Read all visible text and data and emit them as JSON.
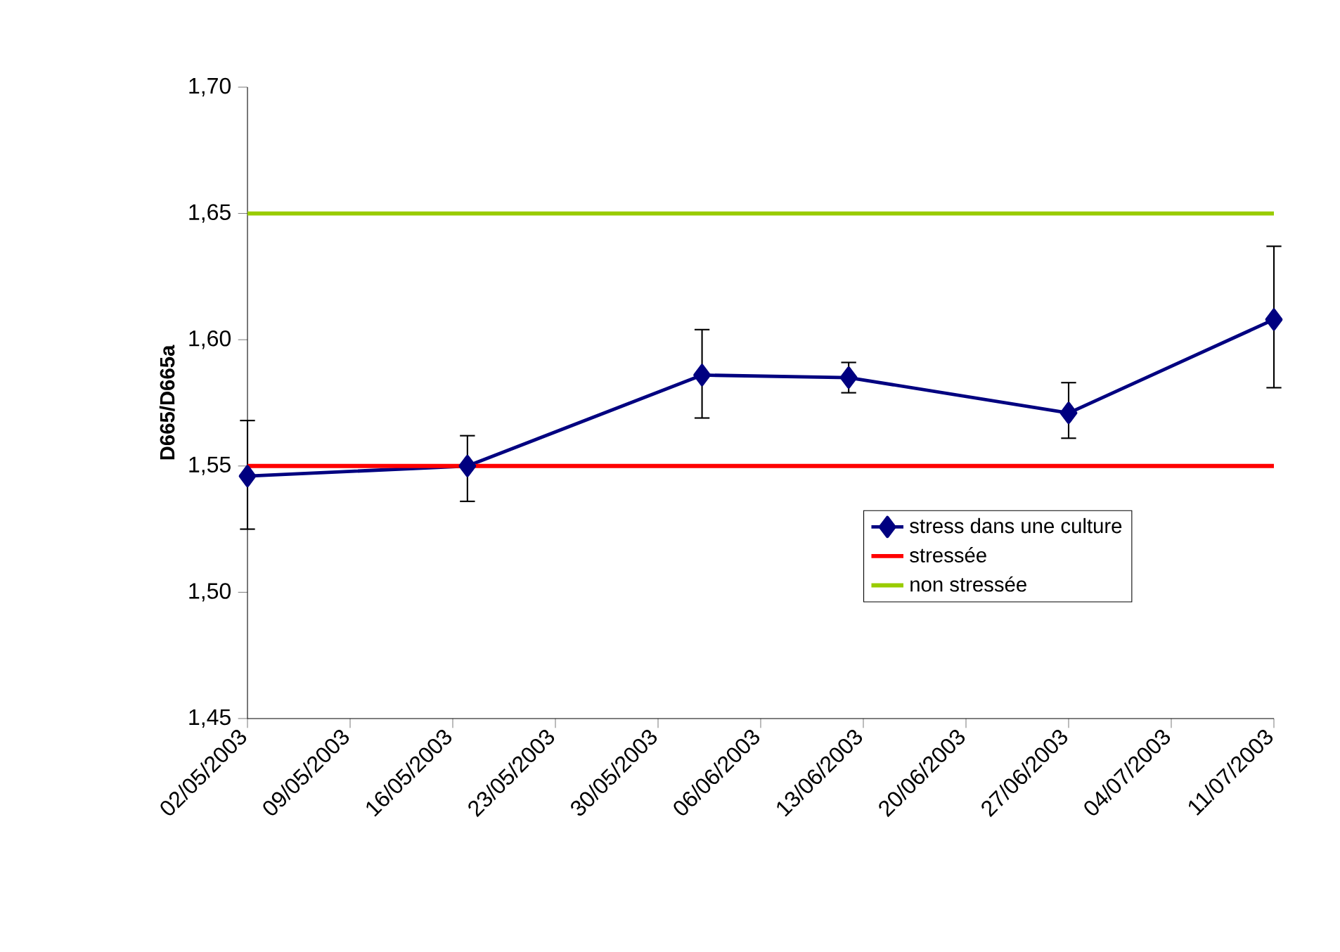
{
  "chart_data": {
    "type": "line",
    "ylabel": "D665/D665a",
    "x": [
      "2003-05-02",
      "2003-05-17",
      "2003-06-02",
      "2003-06-12",
      "2003-06-27",
      "2003-07-11"
    ],
    "series": [
      {
        "name": "stress dans une culture",
        "color": "#000080",
        "marker": "diamond",
        "values": [
          1.546,
          1.55,
          1.586,
          1.585,
          1.571,
          1.608
        ],
        "errors": [
          [
            1.525,
            1.568
          ],
          [
            1.536,
            1.562
          ],
          [
            1.569,
            1.604
          ],
          [
            1.579,
            1.591
          ],
          [
            1.561,
            1.583
          ],
          [
            1.581,
            1.637
          ]
        ]
      },
      {
        "name": "stressée",
        "color": "#ff0000",
        "marker": "none",
        "x": [
          "2003-05-02",
          "2003-07-11"
        ],
        "values": [
          1.55,
          1.55
        ]
      },
      {
        "name": "non stressée",
        "color": "#99cc00",
        "marker": "none",
        "x": [
          "2003-05-02",
          "2003-07-11"
        ],
        "values": [
          1.65,
          1.65
        ]
      }
    ],
    "xlim": [
      "2003-05-02",
      "2003-07-11"
    ],
    "xticks": [
      {
        "value": "2003-05-02",
        "label": "02/05/2003"
      },
      {
        "value": "2003-05-09",
        "label": "09/05/2003"
      },
      {
        "value": "2003-05-16",
        "label": "16/05/2003"
      },
      {
        "value": "2003-05-23",
        "label": "23/05/2003"
      },
      {
        "value": "2003-05-30",
        "label": "30/05/2003"
      },
      {
        "value": "2003-06-06",
        "label": "06/06/2003"
      },
      {
        "value": "2003-06-13",
        "label": "13/06/2003"
      },
      {
        "value": "2003-06-20",
        "label": "20/06/2003"
      },
      {
        "value": "2003-06-27",
        "label": "27/06/2003"
      },
      {
        "value": "2003-07-04",
        "label": "04/07/2003"
      },
      {
        "value": "2003-07-11",
        "label": "11/07/2003"
      }
    ],
    "ylim": [
      1.45,
      1.7
    ],
    "yticks": [
      {
        "value": 1.45,
        "label": "1,45"
      },
      {
        "value": 1.5,
        "label": "1,50"
      },
      {
        "value": 1.55,
        "label": "1,55"
      },
      {
        "value": 1.6,
        "label": "1,60"
      },
      {
        "value": 1.65,
        "label": "1,65"
      },
      {
        "value": 1.7,
        "label": "1,70"
      }
    ],
    "legend": "right"
  }
}
